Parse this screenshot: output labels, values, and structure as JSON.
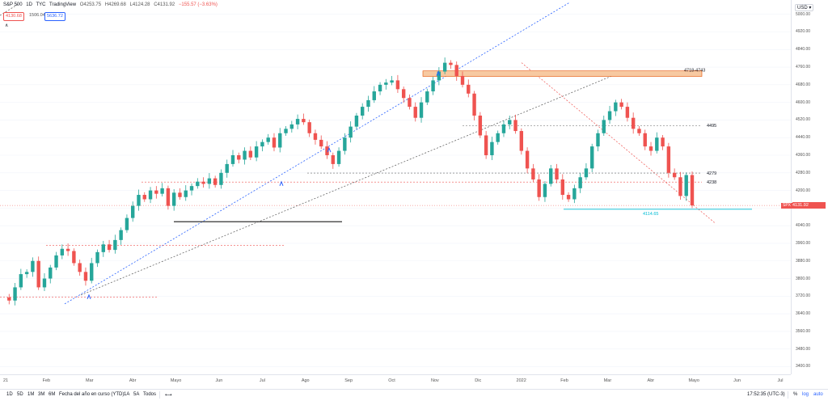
{
  "legend": {
    "symbol": "S&P 500",
    "interval": "1D",
    "exchange": "TYC",
    "source": "TradingView",
    "open": "O4253.75",
    "high": "H4269.68",
    "low": "L4124.28",
    "close": "C4131.92",
    "change": "−155.57 (−3.63%)",
    "pill_sell": "4130.68",
    "pill_mid": "1506.04",
    "pill_buy": "5636.72",
    "chevron": "∧"
  },
  "currency": "USD",
  "last_price": "4131.92",
  "symbol_tag": "SPX",
  "colors": {
    "up": "#26a69a",
    "down": "#ef5350",
    "trend_blue": "#2962ff",
    "support": "#00bcd4",
    "zone_fill": "#f7c9a1",
    "zone_border": "#e65100"
  },
  "chart_data": {
    "type": "candlestick",
    "yticks": [
      5000,
      4920,
      4840,
      4760,
      4680,
      4600,
      4520,
      4440,
      4360,
      4280,
      4200,
      4120,
      4040,
      3960,
      3880,
      3800,
      3720,
      3640,
      3560,
      3480,
      3400
    ],
    "ylim": [
      3365,
      5065
    ],
    "xticks": [
      "21",
      "Feb",
      "Mar",
      "Abr",
      "Mayo",
      "Jun",
      "Jul",
      "Ago",
      "Sep",
      "Oct",
      "Nov",
      "Dic",
      "2022",
      "Feb",
      "Mar",
      "Abr",
      "Mayo",
      "Jun",
      "Jul"
    ],
    "close_path": [
      [
        0,
        3714
      ],
      [
        1,
        3700
      ],
      [
        2,
        3760
      ],
      [
        3,
        3820
      ],
      [
        4,
        3830
      ],
      [
        5,
        3880
      ],
      [
        6,
        3760
      ],
      [
        7,
        3800
      ],
      [
        8,
        3850
      ],
      [
        9,
        3905
      ],
      [
        10,
        3935
      ],
      [
        11,
        3925
      ],
      [
        12,
        3870
      ],
      [
        13,
        3830
      ],
      [
        14,
        3790
      ],
      [
        15,
        3870
      ],
      [
        16,
        3920
      ],
      [
        17,
        3955
      ],
      [
        18,
        3930
      ],
      [
        19,
        3975
      ],
      [
        20,
        4020
      ],
      [
        21,
        4075
      ],
      [
        22,
        4130
      ],
      [
        23,
        4180
      ],
      [
        24,
        4160
      ],
      [
        25,
        4200
      ],
      [
        26,
        4185
      ],
      [
        27,
        4210
      ],
      [
        28,
        4130
      ],
      [
        29,
        4190
      ],
      [
        30,
        4170
      ],
      [
        31,
        4200
      ],
      [
        32,
        4220
      ],
      [
        33,
        4240
      ],
      [
        34,
        4230
      ],
      [
        35,
        4255
      ],
      [
        36,
        4225
      ],
      [
        37,
        4280
      ],
      [
        38,
        4320
      ],
      [
        39,
        4360
      ],
      [
        40,
        4340
      ],
      [
        41,
        4380
      ],
      [
        42,
        4350
      ],
      [
        43,
        4400
      ],
      [
        44,
        4420
      ],
      [
        45,
        4440
      ],
      [
        46,
        4395
      ],
      [
        47,
        4460
      ],
      [
        48,
        4480
      ],
      [
        49,
        4500
      ],
      [
        50,
        4525
      ],
      [
        51,
        4510
      ],
      [
        52,
        4460
      ],
      [
        53,
        4430
      ],
      [
        54,
        4400
      ],
      [
        55,
        4360
      ],
      [
        56,
        4320
      ],
      [
        57,
        4380
      ],
      [
        58,
        4440
      ],
      [
        59,
        4490
      ],
      [
        60,
        4540
      ],
      [
        61,
        4580
      ],
      [
        62,
        4610
      ],
      [
        63,
        4650
      ],
      [
        64,
        4680
      ],
      [
        65,
        4690
      ],
      [
        66,
        4700
      ],
      [
        67,
        4660
      ],
      [
        68,
        4620
      ],
      [
        69,
        4580
      ],
      [
        70,
        4530
      ],
      [
        71,
        4600
      ],
      [
        72,
        4650
      ],
      [
        73,
        4700
      ],
      [
        74,
        4740
      ],
      [
        75,
        4780
      ],
      [
        76,
        4770
      ],
      [
        77,
        4720
      ],
      [
        78,
        4680
      ],
      [
        79,
        4640
      ],
      [
        80,
        4540
      ],
      [
        81,
        4450
      ],
      [
        82,
        4360
      ],
      [
        83,
        4420
      ],
      [
        84,
        4460
      ],
      [
        85,
        4500
      ],
      [
        86,
        4520
      ],
      [
        87,
        4470
      ],
      [
        88,
        4380
      ],
      [
        89,
        4300
      ],
      [
        90,
        4250
      ],
      [
        91,
        4170
      ],
      [
        92,
        4230
      ],
      [
        93,
        4300
      ],
      [
        94,
        4250
      ],
      [
        95,
        4180
      ],
      [
        96,
        4160
      ],
      [
        97,
        4210
      ],
      [
        98,
        4260
      ],
      [
        99,
        4300
      ],
      [
        100,
        4400
      ],
      [
        101,
        4460
      ],
      [
        102,
        4520
      ],
      [
        103,
        4560
      ],
      [
        104,
        4600
      ],
      [
        105,
        4580
      ],
      [
        106,
        4530
      ],
      [
        107,
        4480
      ],
      [
        108,
        4460
      ],
      [
        109,
        4400
      ],
      [
        110,
        4380
      ],
      [
        111,
        4440
      ],
      [
        112,
        4400
      ],
      [
        113,
        4280
      ],
      [
        114,
        4260
      ],
      [
        115,
        4175
      ],
      [
        116,
        4270
      ],
      [
        117,
        4132
      ]
    ],
    "horizontal_levels": [
      {
        "label": "4718-4743",
        "from": 4718,
        "to": 4743,
        "kind": "zone"
      },
      {
        "label": "4495",
        "value": 4495,
        "kind": "dashed-gray"
      },
      {
        "label": "4279",
        "value": 4279,
        "kind": "dashed-gray"
      },
      {
        "label": "4238",
        "value": 4238,
        "kind": "dashed-red"
      },
      {
        "label": "4114.65",
        "value": 4114.65,
        "kind": "support"
      }
    ],
    "other_levels": [
      {
        "value": 4058,
        "kind": "solid-black"
      },
      {
        "value": 3950,
        "kind": "dashed-red"
      },
      {
        "value": 3716,
        "kind": "dashed-red"
      }
    ]
  },
  "bottombar": {
    "ranges": [
      "1D",
      "5D",
      "1M",
      "3M",
      "6M",
      "Fecha del año en curso (YTD)",
      "1A",
      "5A",
      "Todos"
    ],
    "time": "17:52:35 (UTC-3)",
    "percent": "%",
    "log": "log",
    "auto": "auto"
  }
}
